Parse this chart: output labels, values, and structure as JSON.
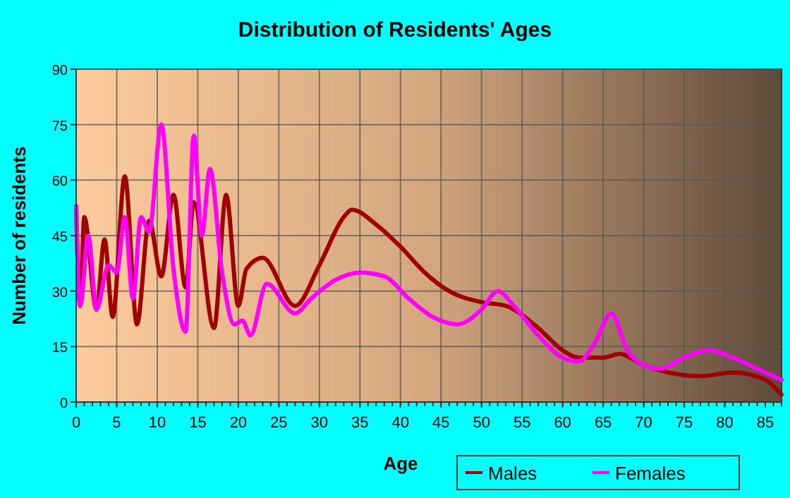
{
  "chart_data": {
    "type": "line",
    "title": "Distribution of Residents' Ages",
    "xlabel": "Age",
    "ylabel": "Number of residents",
    "xlim": [
      0,
      87
    ],
    "xticks": [
      0,
      5,
      10,
      15,
      20,
      25,
      30,
      35,
      40,
      45,
      50,
      55,
      60,
      65,
      70,
      75,
      80,
      85
    ],
    "ylim": [
      0,
      90
    ],
    "yticks": [
      0,
      15,
      30,
      45,
      60,
      75,
      90
    ],
    "grid": true,
    "legend": "bottom right",
    "line_style": "solid",
    "marker": "none",
    "series": [
      {
        "name": "Males",
        "color": "#a00000",
        "x": [
          0,
          0.5,
          1,
          2.5,
          3.5,
          4.5,
          6,
          7.5,
          9,
          10.5,
          12,
          13.5,
          14.5,
          17,
          18.5,
          20,
          21,
          23,
          27,
          30,
          33,
          34,
          37,
          40,
          43,
          46,
          50,
          53,
          57,
          60,
          62,
          65,
          67,
          70,
          73,
          77,
          81,
          85,
          87
        ],
        "values": [
          52,
          26,
          50,
          25,
          44,
          23,
          61,
          21,
          49,
          34,
          56,
          31,
          54,
          20,
          56,
          26,
          36,
          39,
          26,
          37,
          50,
          52,
          48,
          42,
          35,
          30,
          27,
          26,
          20,
          14,
          12,
          12,
          13,
          10,
          8,
          7,
          8,
          6,
          2
        ]
      },
      {
        "name": "Females",
        "color": "#ff00ff",
        "x": [
          0,
          0.5,
          1.5,
          2.5,
          4,
          5,
          6,
          7,
          8,
          9,
          10.5,
          12,
          13.5,
          14.5,
          15.5,
          16.5,
          18,
          19.5,
          20.5,
          21.5,
          23.5,
          27,
          29,
          32,
          35,
          38,
          41,
          44,
          47,
          50,
          52,
          54,
          57,
          60,
          62,
          64,
          66,
          68,
          70,
          72,
          75,
          78,
          81,
          84,
          87
        ],
        "values": [
          53,
          26,
          45,
          25,
          37,
          35,
          50,
          28,
          50,
          46,
          75,
          36,
          19,
          72,
          45,
          63,
          35,
          21,
          22,
          18,
          32,
          24,
          28,
          33,
          35,
          34,
          28,
          23,
          21,
          25,
          30,
          26,
          18,
          12,
          11,
          16,
          24,
          14,
          10,
          9,
          12,
          14,
          12,
          9,
          6
        ]
      }
    ]
  }
}
